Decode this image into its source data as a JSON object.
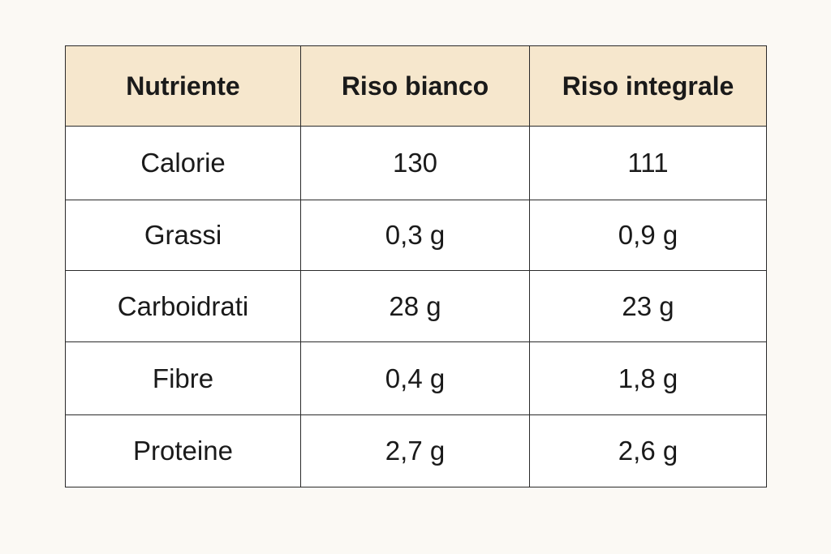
{
  "table": {
    "header": [
      "Nutriente",
      "Riso bianco",
      "Riso integrale"
    ],
    "rows": [
      [
        "Calorie",
        "130",
        "111"
      ],
      [
        "Grassi",
        "0,3 g",
        "0,9 g"
      ],
      [
        "Carboidrati",
        "28 g",
        "23 g"
      ],
      [
        "Fibre",
        "0,4 g",
        "1,8 g"
      ],
      [
        "Proteine",
        "2,7 g",
        "2,6 g"
      ]
    ]
  }
}
